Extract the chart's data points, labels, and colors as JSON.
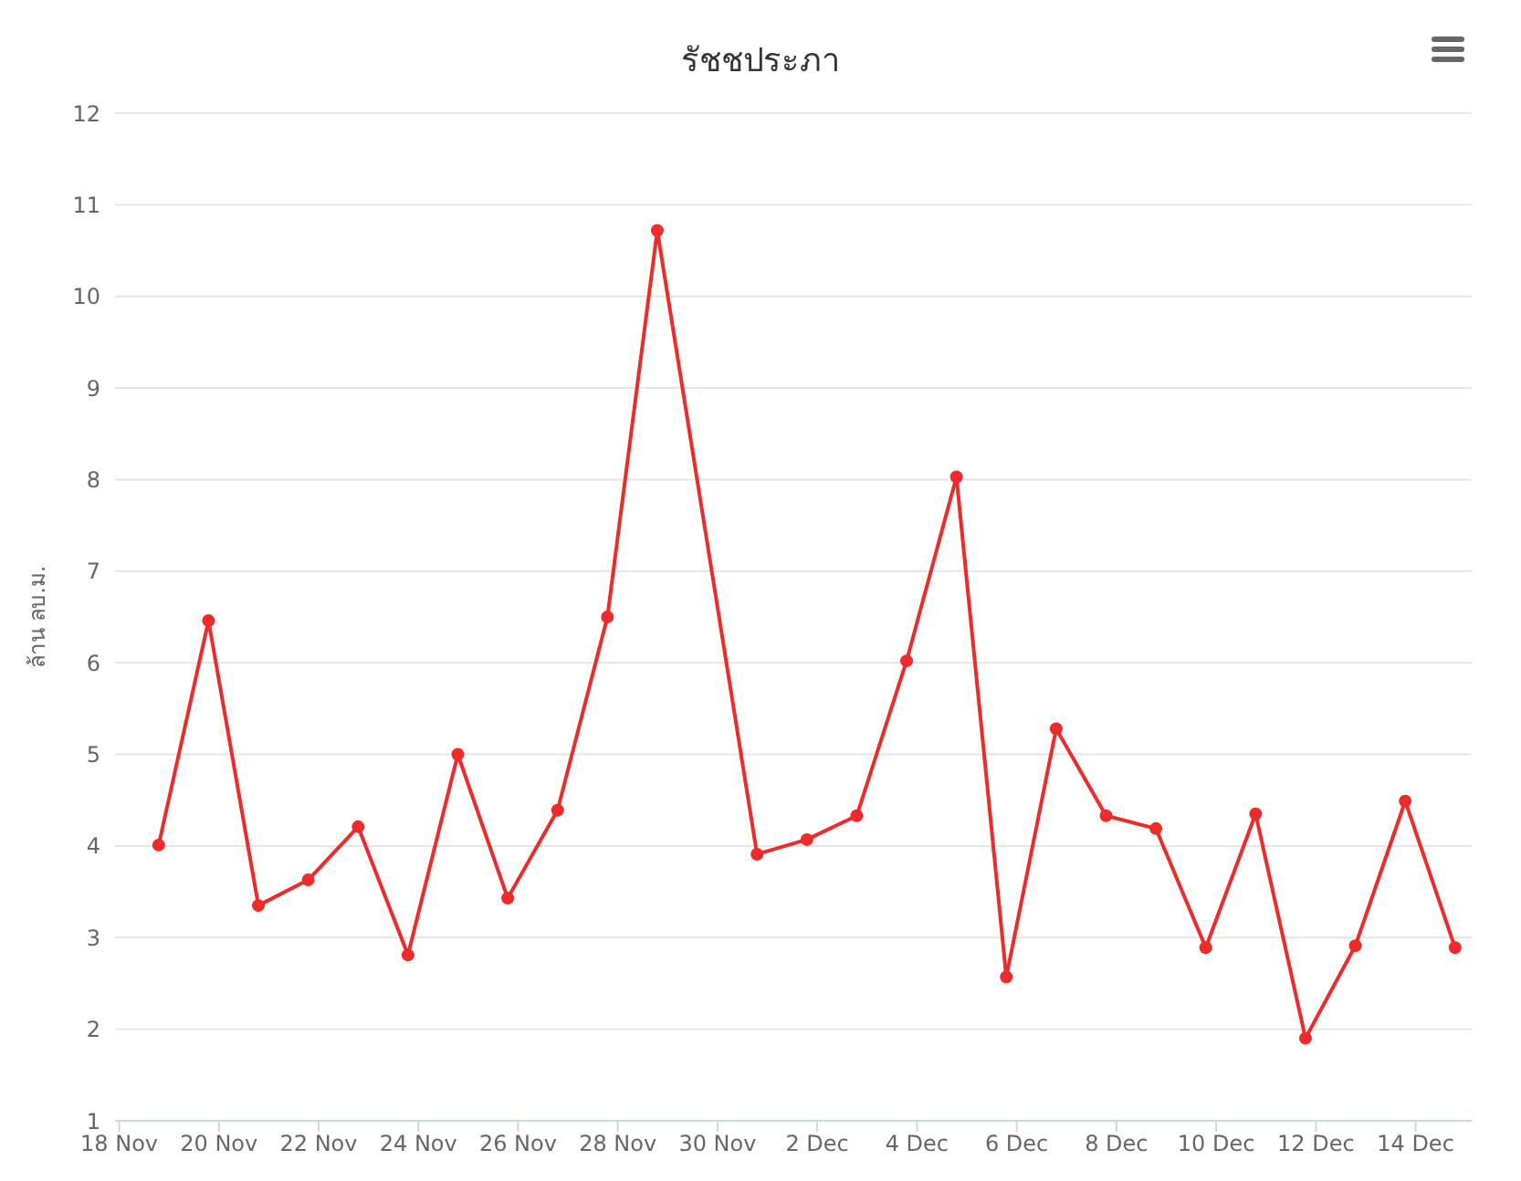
{
  "chart_data": {
    "type": "line",
    "title": "รัชชประภา",
    "ylabel": "ล้าน ลบ.ม.",
    "x": [
      "--11-18T19:00",
      "--11-19T19:00",
      "--11-20T19:00",
      "--11-21T19:00",
      "--11-22T19:00",
      "--11-23T19:00",
      "--11-24T19:00",
      "--11-25T19:00",
      "--11-26T19:00",
      "--11-27T19:00",
      "--11-28T19:00",
      "--11-30T19:00",
      "--12-01T19:00",
      "--12-02T19:00",
      "--12-03T19:00",
      "--12-04T19:00",
      "--12-05T19:00",
      "--12-06T19:00",
      "--12-07T19:00",
      "--12-08T19:00",
      "--12-09T19:00",
      "--12-10T19:00",
      "--12-11T19:00",
      "--12-12T19:00",
      "--12-13T19:00",
      "--12-14T19:00"
    ],
    "series": [
      {
        "color": "#ee2a2a",
        "values": [
          4.01,
          6.46,
          3.35,
          3.63,
          4.21,
          2.81,
          5.0,
          3.43,
          4.39,
          6.5,
          10.72,
          3.91,
          4.07,
          4.33,
          6.02,
          8.03,
          2.57,
          5.28,
          4.33,
          4.19,
          2.89,
          4.35,
          1.9,
          2.91,
          4.49,
          2.89
        ]
      }
    ],
    "xlim": [
      "--11-17T22:00",
      "--12-15T03:00"
    ],
    "xticks": [
      {
        "value": "--11-18",
        "label": "18 Nov"
      },
      {
        "value": "--11-20",
        "label": "20 Nov"
      },
      {
        "value": "--11-22",
        "label": "22 Nov"
      },
      {
        "value": "--11-24",
        "label": "24 Nov"
      },
      {
        "value": "--11-26",
        "label": "26 Nov"
      },
      {
        "value": "--11-28",
        "label": "28 Nov"
      },
      {
        "value": "--11-30",
        "label": "30 Nov"
      },
      {
        "value": "--12-02",
        "label": "2 Dec"
      },
      {
        "value": "--12-04",
        "label": "4 Dec"
      },
      {
        "value": "--12-06",
        "label": "6 Dec"
      },
      {
        "value": "--12-08",
        "label": "8 Dec"
      },
      {
        "value": "--12-10",
        "label": "10 Dec"
      },
      {
        "value": "--12-12",
        "label": "12 Dec"
      },
      {
        "value": "--12-14",
        "label": "14 Dec"
      }
    ],
    "ylim": [
      1,
      12
    ],
    "yticks": [
      1,
      2,
      3,
      4,
      5,
      6,
      7,
      8,
      9,
      10,
      11,
      12
    ],
    "grid": "y",
    "legend": false,
    "marker": "circle",
    "line_style": "solid"
  }
}
